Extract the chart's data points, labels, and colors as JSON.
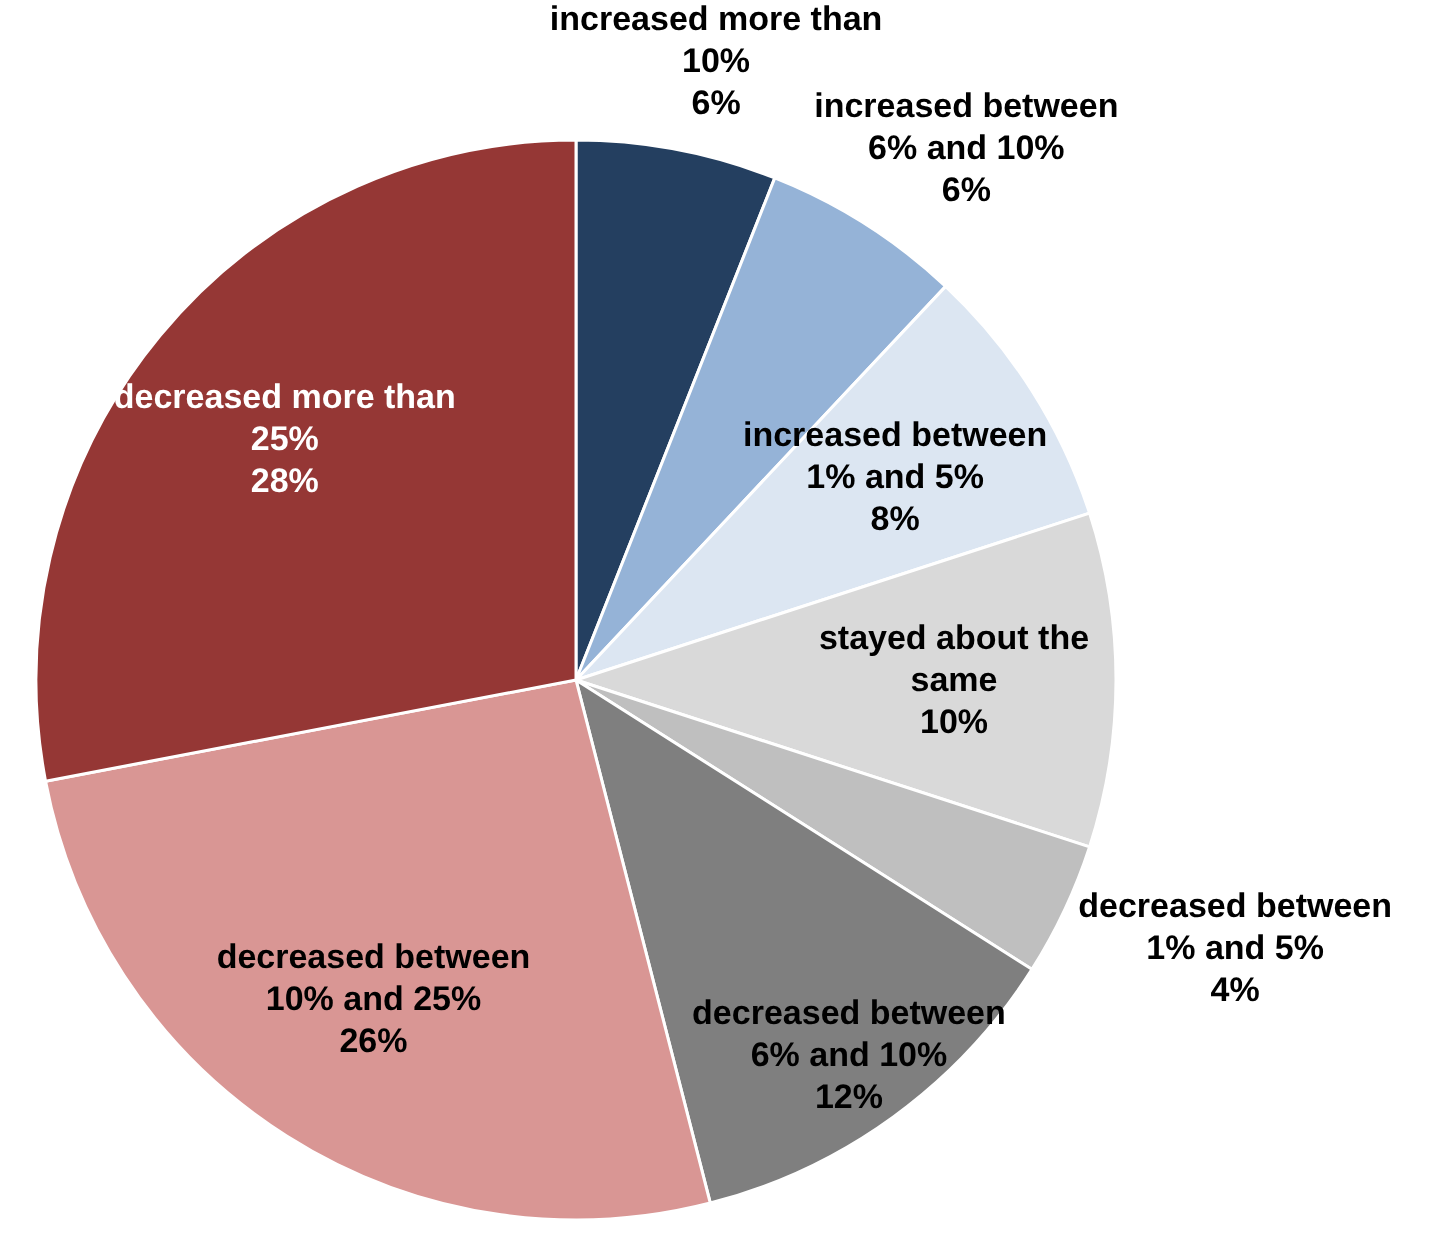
{
  "chart_data": {
    "type": "pie",
    "categories": [
      "increased more than 10%",
      "increased between 6% and 10%",
      "increased between 1% and 5%",
      "stayed about the same",
      "decreased between 1% and 5%",
      "decreased between 6% and 10%",
      "decreased between 10% and 25%",
      "decreased more than 25%"
    ],
    "values": [
      6,
      6,
      8,
      10,
      4,
      12,
      26,
      28
    ],
    "value_labels": [
      "6%",
      "6%",
      "8%",
      "10%",
      "4%",
      "12%",
      "26%",
      "28%"
    ],
    "colors": [
      "#243f60",
      "#95b3d7",
      "#dce6f2",
      "#d9d9d9",
      "#bfbfbf",
      "#7f7f7f",
      "#d99694",
      "#953735"
    ]
  }
}
